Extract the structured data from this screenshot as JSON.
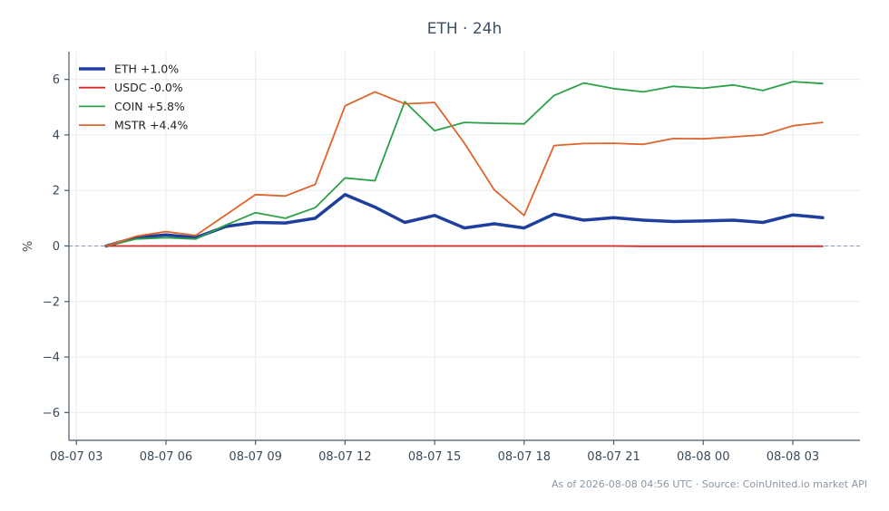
{
  "chart_data": {
    "type": "line",
    "title": "ETH · 24h",
    "xlabel": "",
    "ylabel": "%",
    "ylim": [
      -7,
      7
    ],
    "yticks": [
      -6,
      -4,
      -2,
      0,
      2,
      4,
      6
    ],
    "ytick_labels": [
      "−6",
      "−4",
      "−2",
      "0",
      "2",
      "4",
      "6"
    ],
    "xlim": [
      -0.25,
      26.25
    ],
    "xtick_positions": [
      0,
      3,
      6,
      9,
      12,
      15,
      18,
      21,
      24
    ],
    "xtick_labels": [
      "08-07 03",
      "08-07 06",
      "08-07 09",
      "08-07 12",
      "08-07 15",
      "08-07 18",
      "08-07 21",
      "08-08 00",
      "08-08 03"
    ],
    "x": [
      1,
      2,
      3,
      4,
      5,
      6,
      7,
      8,
      9,
      10,
      11,
      12,
      13,
      14,
      15,
      16,
      17,
      18,
      19,
      20,
      21,
      22,
      23,
      24,
      25
    ],
    "zero_line": true,
    "grid": true,
    "legend_position": "top-left",
    "series": [
      {
        "name": "ETH +1.0%",
        "color": "#1f3f9f",
        "width": 3.5,
        "values": [
          0.0,
          0.3,
          0.4,
          0.3,
          0.7,
          0.85,
          0.83,
          1.0,
          1.85,
          1.4,
          0.85,
          1.1,
          0.65,
          0.8,
          0.65,
          1.15,
          0.93,
          1.02,
          0.93,
          0.88,
          0.9,
          0.93,
          0.85,
          1.12,
          1.02
        ]
      },
      {
        "name": "USDC -0.0%",
        "color": "#d62728",
        "width": 1.8,
        "values": [
          0.0,
          0.0,
          0.0,
          0.0,
          0.0,
          0.0,
          0.0,
          0.0,
          0.0,
          0.0,
          0.0,
          0.0,
          0.0,
          0.0,
          0.0,
          0.0,
          0.0,
          0.0,
          -0.01,
          -0.01,
          -0.01,
          -0.01,
          -0.01,
          -0.01,
          -0.01
        ]
      },
      {
        "name": "COIN +5.8%",
        "color": "#2ca048",
        "width": 1.8,
        "values": [
          0.0,
          0.25,
          0.3,
          0.25,
          0.75,
          1.2,
          1.0,
          1.38,
          2.45,
          2.35,
          5.2,
          4.15,
          4.45,
          4.42,
          4.4,
          5.42,
          5.87,
          5.67,
          5.55,
          5.75,
          5.68,
          5.8,
          5.6,
          5.92,
          5.85
        ]
      },
      {
        "name": "MSTR +4.4%",
        "color": "#e0642a",
        "width": 1.8,
        "values": [
          0.0,
          0.35,
          0.52,
          0.38,
          1.12,
          1.85,
          1.8,
          2.22,
          5.05,
          5.55,
          5.12,
          5.17,
          3.7,
          2.02,
          1.1,
          3.62,
          3.69,
          3.7,
          3.66,
          3.87,
          3.86,
          3.93,
          4.0,
          4.33,
          4.45
        ]
      }
    ],
    "footnote": "As of 2026-08-08 04:56 UTC · Source: CoinUnited.io market API"
  }
}
